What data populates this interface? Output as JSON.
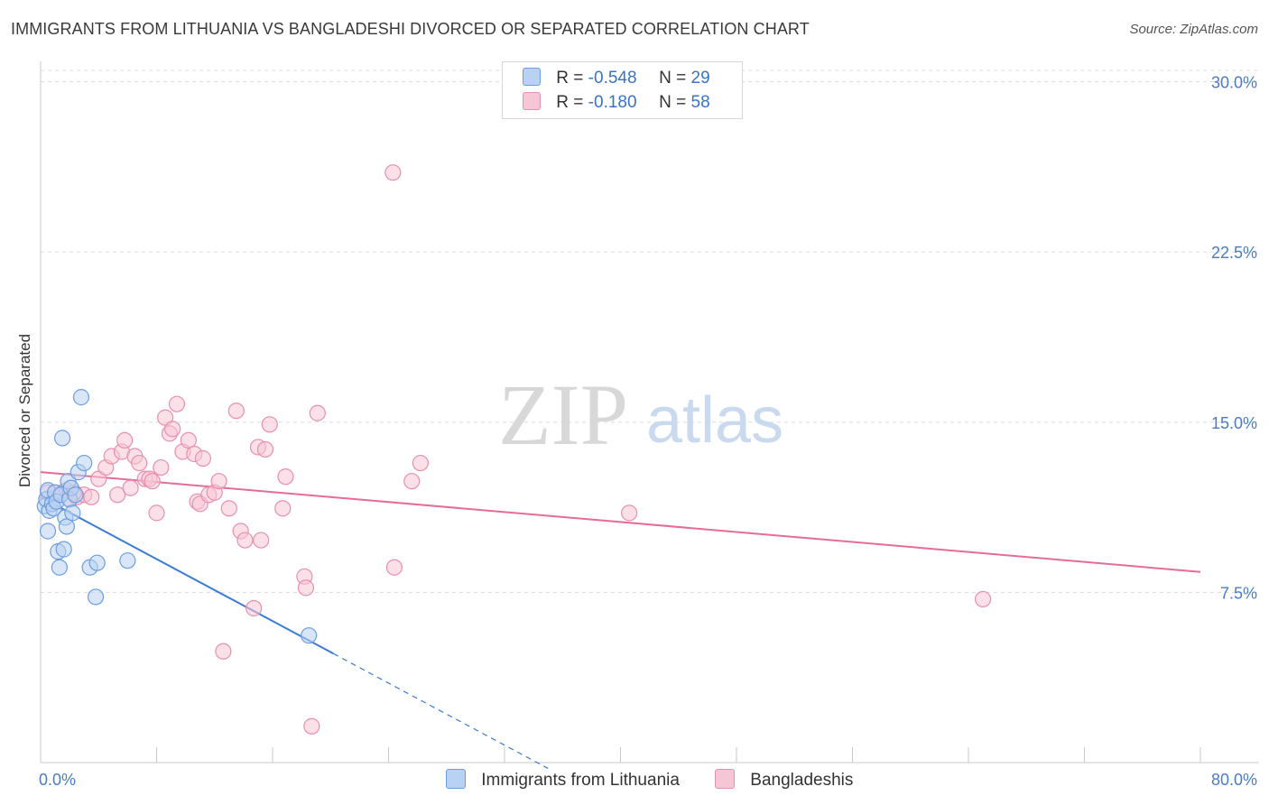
{
  "header": {
    "title": "IMMIGRANTS FROM LITHUANIA VS BANGLADESHI DIVORCED OR SEPARATED CORRELATION CHART",
    "source": "Source: ZipAtlas.com"
  },
  "legend": {
    "rows": [
      {
        "r_label": "R =",
        "r_value": "-0.548",
        "n_label": "N =",
        "n_value": "29"
      },
      {
        "r_label": "R =",
        "r_value": "-0.180",
        "n_label": "N =",
        "n_value": "58"
      }
    ]
  },
  "watermark": {
    "zip": "ZIP",
    "atlas": "atlas"
  },
  "colors": {
    "blue_fill": "#b9d1f3",
    "blue_stroke": "#6b9ee0",
    "blue_line": "#3a7bd5",
    "pink_fill": "#f7c6d6",
    "pink_stroke": "#e88fae",
    "pink_line": "#e46c97",
    "grid": "#dcdcdc",
    "tick": "#4a7bc8"
  },
  "chart_data": {
    "type": "scatter",
    "title": "IMMIGRANTS FROM LITHUANIA VS BANGLADESHI DIVORCED OR SEPARATED CORRELATION CHART",
    "xlabel": "",
    "ylabel": "Divorced or Separated",
    "xlim": [
      0,
      80
    ],
    "ylim": [
      0,
      30.5
    ],
    "x_tick_labels": [
      "0.0%",
      "80.0%"
    ],
    "y_ticks": [
      7.5,
      15.0,
      22.5,
      30.0
    ],
    "y_tick_labels": [
      "7.5%",
      "15.0%",
      "22.5%",
      "30.0%"
    ],
    "grid": true,
    "legend_position": "bottom",
    "series": [
      {
        "name": "Immigrants from Lithuania",
        "color": "#6b9ee0",
        "points": [
          [
            0.3,
            11.3
          ],
          [
            0.4,
            11.6
          ],
          [
            0.5,
            12.0
          ],
          [
            0.6,
            11.1
          ],
          [
            0.5,
            10.2
          ],
          [
            0.8,
            11.4
          ],
          [
            0.9,
            11.2
          ],
          [
            1.0,
            11.9
          ],
          [
            1.1,
            11.5
          ],
          [
            1.2,
            9.3
          ],
          [
            1.3,
            8.6
          ],
          [
            1.4,
            11.8
          ],
          [
            1.5,
            14.3
          ],
          [
            1.6,
            9.4
          ],
          [
            1.7,
            10.8
          ],
          [
            1.8,
            10.4
          ],
          [
            1.9,
            12.4
          ],
          [
            2.0,
            11.6
          ],
          [
            2.1,
            12.1
          ],
          [
            2.2,
            11.0
          ],
          [
            2.4,
            11.8
          ],
          [
            2.6,
            12.8
          ],
          [
            2.8,
            16.1
          ],
          [
            3.0,
            13.2
          ],
          [
            3.4,
            8.6
          ],
          [
            3.8,
            7.3
          ],
          [
            3.9,
            8.8
          ],
          [
            6.0,
            8.9
          ],
          [
            18.5,
            5.6
          ]
        ],
        "trend": {
          "x0": 0,
          "y0": 11.7,
          "x1": 20.2,
          "y1": 4.8,
          "dash_to_x": 35.0
        }
      },
      {
        "name": "Bangladeshis",
        "color": "#e88fae",
        "points": [
          [
            0.5,
            11.9
          ],
          [
            1.0,
            11.7
          ],
          [
            1.5,
            11.9
          ],
          [
            2.0,
            11.6
          ],
          [
            2.5,
            11.7
          ],
          [
            3.0,
            11.8
          ],
          [
            3.5,
            11.7
          ],
          [
            4.0,
            12.5
          ],
          [
            4.5,
            13.0
          ],
          [
            4.9,
            13.5
          ],
          [
            5.3,
            11.8
          ],
          [
            5.6,
            13.7
          ],
          [
            5.8,
            14.2
          ],
          [
            6.2,
            12.1
          ],
          [
            6.5,
            13.5
          ],
          [
            6.8,
            13.2
          ],
          [
            7.2,
            12.5
          ],
          [
            7.5,
            12.5
          ],
          [
            7.7,
            12.4
          ],
          [
            8.0,
            11.0
          ],
          [
            8.3,
            13.0
          ],
          [
            8.6,
            15.2
          ],
          [
            8.9,
            14.5
          ],
          [
            9.1,
            14.7
          ],
          [
            9.4,
            15.8
          ],
          [
            9.8,
            13.7
          ],
          [
            10.2,
            14.2
          ],
          [
            10.6,
            13.6
          ],
          [
            10.8,
            11.5
          ],
          [
            11.0,
            11.4
          ],
          [
            11.2,
            13.4
          ],
          [
            11.6,
            11.8
          ],
          [
            12.0,
            11.9
          ],
          [
            12.3,
            12.4
          ],
          [
            12.6,
            4.9
          ],
          [
            13.0,
            11.2
          ],
          [
            13.5,
            15.5
          ],
          [
            13.8,
            10.2
          ],
          [
            14.1,
            9.8
          ],
          [
            14.7,
            6.8
          ],
          [
            15.2,
            9.8
          ],
          [
            15.0,
            13.9
          ],
          [
            15.5,
            13.8
          ],
          [
            15.8,
            14.9
          ],
          [
            16.7,
            11.2
          ],
          [
            16.9,
            12.6
          ],
          [
            18.2,
            8.2
          ],
          [
            18.3,
            7.7
          ],
          [
            18.7,
            1.6
          ],
          [
            19.1,
            15.4
          ],
          [
            24.3,
            26.0
          ],
          [
            24.4,
            8.6
          ],
          [
            25.6,
            12.4
          ],
          [
            26.2,
            13.2
          ],
          [
            40.6,
            11.0
          ],
          [
            65.0,
            7.2
          ],
          [
            1.8,
            12.0
          ],
          [
            2.3,
            11.9
          ]
        ],
        "trend": {
          "x0": 0,
          "y0": 12.8,
          "x1": 80,
          "y1": 8.4
        }
      }
    ]
  }
}
